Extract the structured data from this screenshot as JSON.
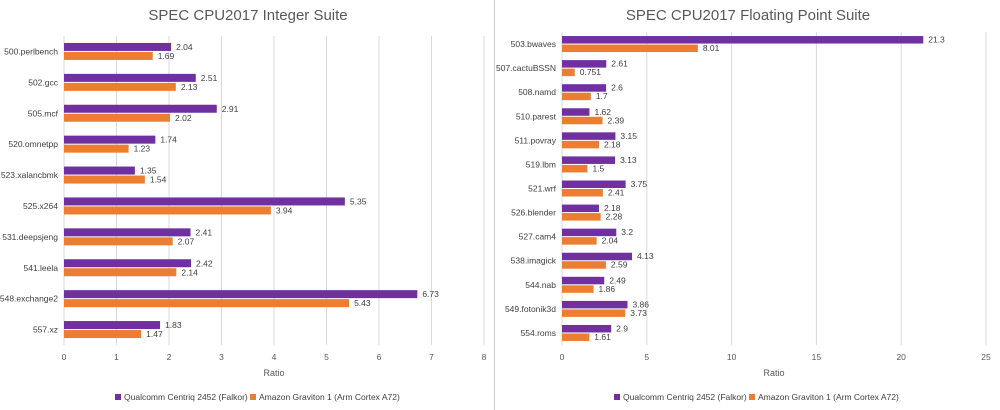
{
  "chart_data": [
    {
      "type": "bar",
      "orientation": "horizontal",
      "title": "SPEC CPU2017 Integer Suite",
      "xlabel": "Ratio",
      "ylabel": "",
      "xlim": [
        0,
        8
      ],
      "xticks": [
        "0",
        "1",
        "2",
        "3",
        "4",
        "5",
        "6",
        "7",
        "8"
      ],
      "grid": "vertical",
      "legend": "bottom",
      "categories": [
        "500.perlbench",
        "502.gcc",
        "505.mcf",
        "520.omnetpp",
        "523.xalancbmk",
        "525.x264",
        "531.deepsjeng",
        "541.leela",
        "548.exchange2",
        "557.xz"
      ],
      "series": [
        {
          "name": "Qualcomm Centriq 2452 (Falkor)",
          "color": "#7030a0",
          "values": [
            2.04,
            2.51,
            2.91,
            1.74,
            1.35,
            5.35,
            2.41,
            2.42,
            6.73,
            1.83
          ],
          "labels": [
            "2.04",
            "2.51",
            "2.91",
            "1.74",
            "1.35",
            "5.35",
            "2.41",
            "2.42",
            "6.73",
            "1.83"
          ]
        },
        {
          "name": "Amazon Graviton 1 (Arm Cortex A72)",
          "color": "#ed7d31",
          "values": [
            1.69,
            2.13,
            2.02,
            1.23,
            1.54,
            3.94,
            2.07,
            2.14,
            5.43,
            1.47
          ],
          "labels": [
            "1.69",
            "2.13",
            "2.02",
            "1.23",
            "1.54",
            "3.94",
            "2.07",
            "2.14",
            "5.43",
            "1.47"
          ]
        }
      ]
    },
    {
      "type": "bar",
      "orientation": "horizontal",
      "title": "SPEC CPU2017 Floating Point Suite",
      "xlabel": "Ratio",
      "ylabel": "",
      "xlim": [
        0,
        25
      ],
      "xticks": [
        "0",
        "5",
        "10",
        "15",
        "20",
        "25"
      ],
      "grid": "vertical",
      "legend": "bottom",
      "categories": [
        "503.bwaves",
        "507.cactuBSSN",
        "508.namd",
        "510.parest",
        "511.povray",
        "519.lbm",
        "521.wrf",
        "526.blender",
        "527.cam4",
        "538.imagick",
        "544.nab",
        "549.fotonik3d",
        "554.roms"
      ],
      "series": [
        {
          "name": "Qualcomm Centriq 2452 (Falkor)",
          "color": "#7030a0",
          "values": [
            21.3,
            2.61,
            2.6,
            1.62,
            3.15,
            3.13,
            3.75,
            2.18,
            3.2,
            4.13,
            2.49,
            3.86,
            2.9
          ],
          "labels": [
            "21.3",
            "2.61",
            "2.6",
            "1.62",
            "3.15",
            "3.13",
            "3.75",
            "2.18",
            "3.2",
            "4.13",
            "2.49",
            "3.86",
            "2.9"
          ]
        },
        {
          "name": "Amazon Graviton 1 (Arm Cortex A72)",
          "color": "#ed7d31",
          "values": [
            8.01,
            0.751,
            1.7,
            2.39,
            2.18,
            1.5,
            2.41,
            2.28,
            2.04,
            2.59,
            1.86,
            3.73,
            1.61
          ],
          "labels": [
            "8.01",
            "0.751",
            "1.7",
            "2.39",
            "2.18",
            "1.5",
            "2.41",
            "2.28",
            "2.04",
            "2.59",
            "1.86",
            "3.73",
            "1.61"
          ]
        }
      ]
    }
  ]
}
